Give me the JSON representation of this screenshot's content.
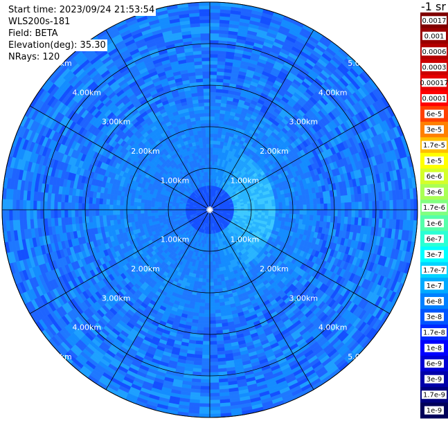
{
  "header": {
    "start_time": "Start time: 2023/09/24 21:53:54",
    "instrument": "WLS200s-181",
    "field": "Field: BETA",
    "elevation": "Elevation(deg): 35.30",
    "nrays": "NRays: 120"
  },
  "chart_data": {
    "type": "heatmap",
    "projection": "polar-ppi",
    "range_rings_km": [
      1,
      2,
      3,
      4,
      5
    ],
    "ring_labels": [
      "1.00km",
      "2.00km",
      "3.00km",
      "4.00km",
      "5.00km"
    ],
    "max_range_km": 5.0,
    "spokes_deg": [
      0,
      30,
      60,
      90,
      120,
      150,
      180,
      210,
      240,
      270,
      300,
      330
    ],
    "n_rays": 120,
    "grid": true,
    "colorbar": {
      "title": "-1 sr",
      "position": "right",
      "labels": [
        "0.0017",
        "0.001",
        "0.0006",
        "0.0003",
        "0.00017",
        "0.0001",
        "6e-5",
        "3e-5",
        "1.7e-5",
        "1e-5",
        "6e-6",
        "3e-6",
        "1.7e-6",
        "1e-6",
        "6e-7",
        "3e-7",
        "1.7e-7",
        "1e-7",
        "6e-8",
        "3e-8",
        "1.7e-8",
        "1e-8",
        "6e-9",
        "3e-9",
        "1.7e-9",
        "1e-9"
      ],
      "colors": [
        "#800000",
        "#990000",
        "#b30000",
        "#cc0000",
        "#e60000",
        "#ff0000",
        "#ff4000",
        "#ff8000",
        "#ffbf00",
        "#ffff00",
        "#d4ff2a",
        "#aaff55",
        "#80ff80",
        "#55ffaa",
        "#2affd4",
        "#00ffff",
        "#00d4ff",
        "#00aaff",
        "#0080ff",
        "#0055ff",
        "#002aff",
        "#0000ff",
        "#0000d4",
        "#0000aa",
        "#000080",
        "#00005a"
      ]
    },
    "palette": [
      "#0a3cff",
      "#1450ff",
      "#1e64ff",
      "#1e78ff",
      "#148cff",
      "#1ea0ff",
      "#28b4ff",
      "#3cc8ff",
      "#50dcff"
    ]
  }
}
